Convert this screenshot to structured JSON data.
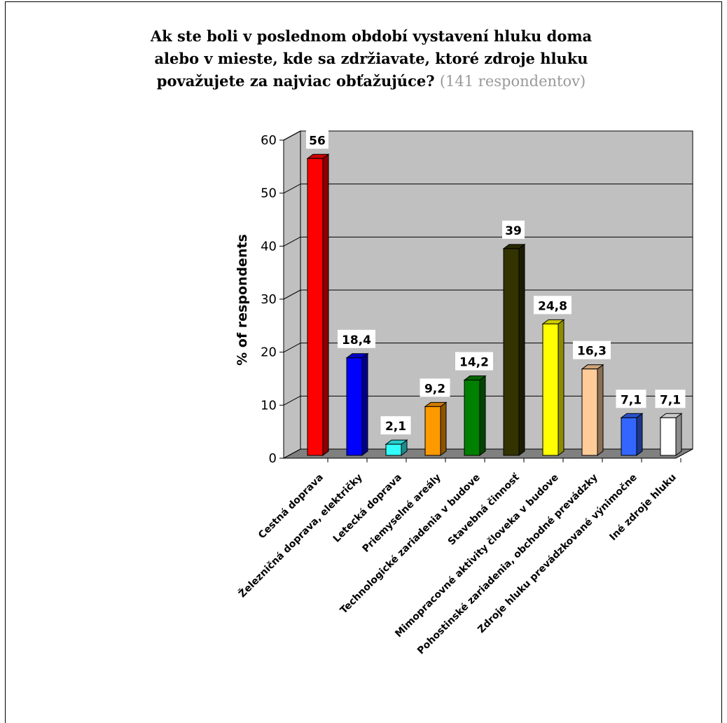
{
  "chart_data": {
    "type": "bar",
    "title_lines": [
      "Ak ste boli v poslednom období vystavení hluku doma",
      "alebo v mieste, kde sa zdržiavate, ktoré zdroje hluku",
      "považujete za najviac obťažujúce?"
    ],
    "subtitle": "(141 respondentov)",
    "ylabel": "%  of respondents",
    "xlabel": "",
    "ylim": [
      0,
      60
    ],
    "yticks": [
      "0",
      "10",
      "20",
      "30",
      "40",
      "50",
      "60"
    ],
    "grid": true,
    "categories": [
      "Cestná doprava",
      "Železničná doprava, električky",
      "Letecká doprava",
      "Priemyselné areály",
      "Technologické zariadenia v budove",
      "Stavebná činnosť",
      "Mimopracovné aktivity človeka v budove",
      "Pohostinské zariadenia, obchodné prevádzky",
      "Zdroje hluku prevádzkované výnimočne",
      "Iné zdroje hluku"
    ],
    "values": [
      56,
      18.4,
      2.1,
      9.2,
      14.2,
      39,
      24.8,
      16.3,
      7.1,
      7.1
    ],
    "value_labels": [
      "56",
      "18,4",
      "2,1",
      "9,2",
      "14,2",
      "39",
      "24,8",
      "16,3",
      "7,1",
      "7,1"
    ],
    "colors": [
      "#ff0000",
      "#0000ff",
      "#33ffff",
      "#ff9900",
      "#008000",
      "#333300",
      "#ffff00",
      "#ffcc99",
      "#3366ff",
      "#ffffff"
    ]
  }
}
